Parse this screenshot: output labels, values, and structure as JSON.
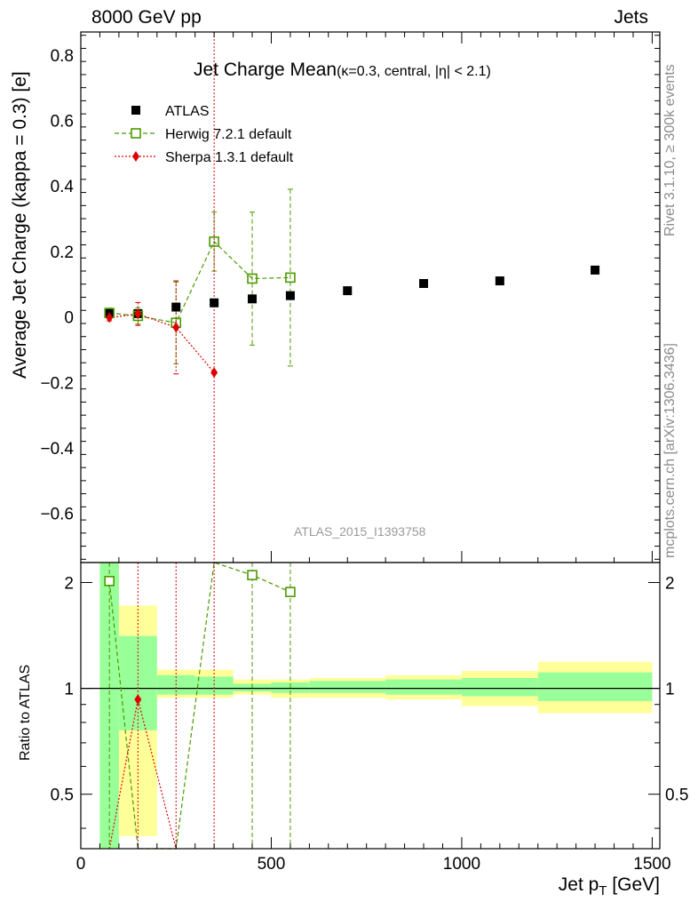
{
  "header": {
    "left": "8000 GeV pp",
    "right": "Jets",
    "side_top": "Rivet 3.1.10, ≥ 300k events",
    "side_bottom": "mcplots.cern.ch [arXiv:1306.3436]",
    "watermark": "ATLAS_2015_I1393758"
  },
  "chart_data": [
    {
      "type": "scatter",
      "title_main": "Jet Charge Mean",
      "title_sub": "(κ=0.3, central, |η| < 2.1)",
      "ylabel": "Average Jet Charge (kappa = 0.3) [e]",
      "xlim": [
        0,
        1520
      ],
      "ylim": [
        -0.75,
        0.87
      ],
      "yticks": [
        "−0.6",
        "−0.4",
        "−0.2",
        "0",
        "0.2",
        "0.4",
        "0.6",
        "0.8"
      ],
      "series": [
        {
          "name": "ATLAS",
          "marker": "square-filled",
          "color": "#000000",
          "x": [
            75,
            150,
            250,
            350,
            450,
            550,
            700,
            900,
            1100,
            1350
          ],
          "y": [
            0.01,
            0.01,
            0.03,
            0.043,
            0.055,
            0.065,
            0.08,
            0.102,
            0.11,
            0.143
          ]
        },
        {
          "name": "Herwig 7.2.1 default",
          "marker": "square-open",
          "line": "dashed",
          "color": "#4c9900",
          "x": [
            75,
            150,
            250,
            350,
            450,
            550
          ],
          "y": [
            0.012,
            0.003,
            -0.018,
            0.23,
            0.117,
            0.12
          ],
          "err": [
            0.015,
            0.025,
            0.125,
            0.09,
            0.203,
            0.27
          ]
        },
        {
          "name": "Sherpa 1.3.1 default",
          "marker": "diamond",
          "line": "dotted",
          "color": "#e00000",
          "x": [
            75,
            150,
            250,
            350
          ],
          "y": [
            -0.002,
            0.009,
            -0.032,
            -0.17
          ],
          "err": [
            0.01,
            0.035,
            0.142,
            1.6
          ]
        }
      ]
    },
    {
      "type": "ratio",
      "ylabel": "Ratio to ATLAS",
      "xlabel": "Jet p_T [GeV]",
      "xlim": [
        0,
        1520
      ],
      "ylim": [
        0.35,
        2.28
      ],
      "yticks": [
        "0.5",
        "1",
        "2"
      ],
      "xticks": [
        "0",
        "500",
        "1000",
        "1500"
      ],
      "bands": [
        {
          "x0": 50,
          "x1": 100,
          "inner": [
            0.35,
            2.28
          ],
          "outer": [
            0.35,
            2.28
          ]
        },
        {
          "x0": 100,
          "x1": 200,
          "inner": [
            0.76,
            1.41
          ],
          "outer": [
            0.38,
            1.72
          ]
        },
        {
          "x0": 200,
          "x1": 300,
          "inner": [
            0.96,
            1.09
          ],
          "outer": [
            0.94,
            1.13
          ]
        },
        {
          "x0": 300,
          "x1": 400,
          "inner": [
            0.96,
            1.08
          ],
          "outer": [
            0.94,
            1.13
          ]
        },
        {
          "x0": 400,
          "x1": 500,
          "inner": [
            0.98,
            1.03
          ],
          "outer": [
            0.96,
            1.06
          ]
        },
        {
          "x0": 500,
          "x1": 600,
          "inner": [
            0.97,
            1.04
          ],
          "outer": [
            0.94,
            1.06
          ]
        },
        {
          "x0": 600,
          "x1": 800,
          "inner": [
            0.97,
            1.05
          ],
          "outer": [
            0.94,
            1.07
          ]
        },
        {
          "x0": 800,
          "x1": 1000,
          "inner": [
            0.96,
            1.06
          ],
          "outer": [
            0.93,
            1.09
          ]
        },
        {
          "x0": 1000,
          "x1": 1200,
          "inner": [
            0.95,
            1.07
          ],
          "outer": [
            0.89,
            1.12
          ]
        },
        {
          "x0": 1200,
          "x1": 1500,
          "inner": [
            0.92,
            1.11
          ],
          "outer": [
            0.85,
            1.19
          ]
        }
      ],
      "series": [
        {
          "name": "Herwig 7.2.1 default",
          "x": [
            75,
            150,
            250,
            350,
            450,
            550
          ],
          "y": [
            2.02,
            null,
            null,
            null,
            2.1,
            1.88
          ]
        },
        {
          "name": "Sherpa 1.3.1 default",
          "x": [
            75,
            150,
            250,
            350
          ],
          "y": [
            null,
            0.93,
            null,
            null
          ]
        }
      ]
    }
  ]
}
